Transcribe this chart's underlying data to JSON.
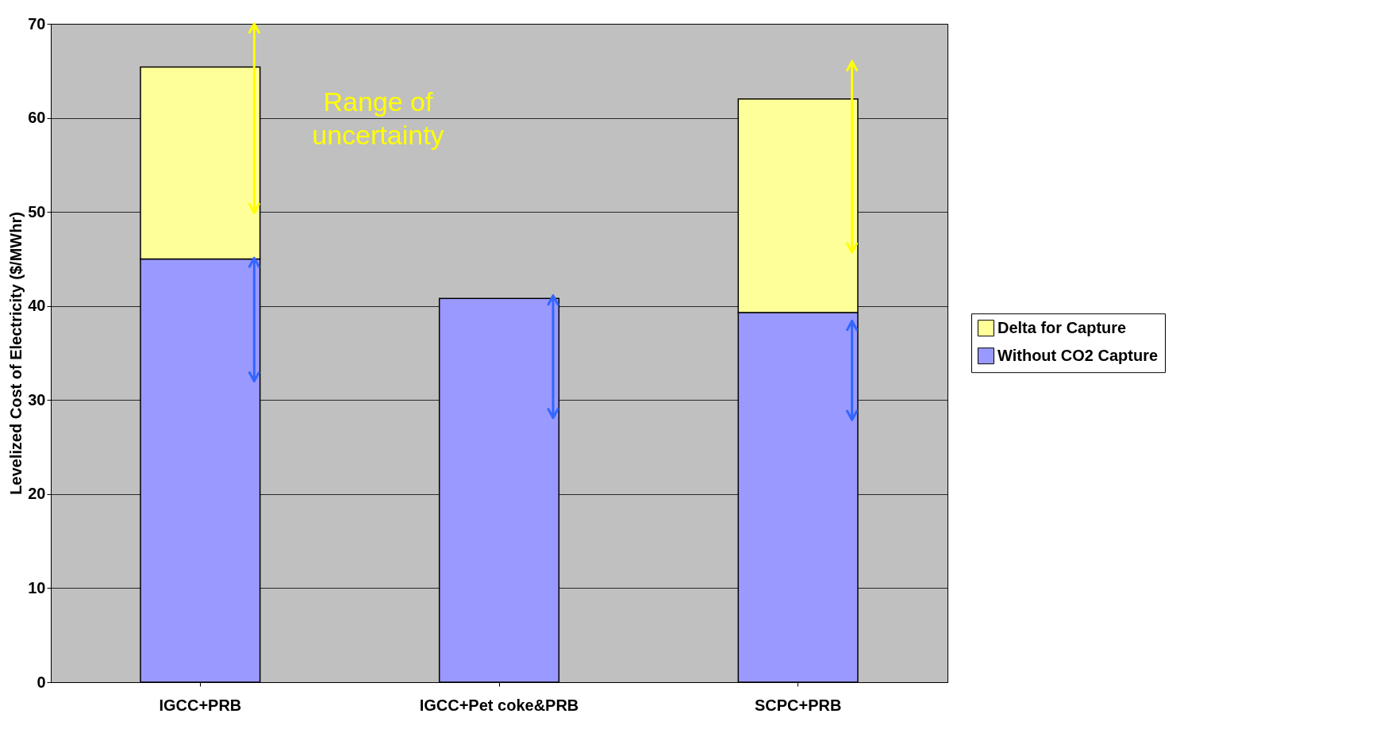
{
  "chart_data": {
    "type": "bar",
    "stacked": true,
    "ylabel": "Levelized Cost of Electricity ($/MWhr)",
    "categories": [
      "IGCC+PRB",
      "IGCC+Pet coke&PRB",
      "SCPC+PRB"
    ],
    "series": [
      {
        "name": "Without CO2 Capture",
        "color": "#9999ff",
        "values": [
          45.0,
          40.8,
          39.3
        ],
        "errors": [
          [
            32.0,
            45.1
          ],
          [
            28.1,
            41.1
          ],
          [
            27.9,
            38.4
          ]
        ]
      },
      {
        "name": "Delta for Capture",
        "color": "#ffff99",
        "values": [
          20.4,
          null,
          22.7
        ],
        "errors": [
          [
            49.9,
            70.0
          ],
          null,
          [
            45.7,
            66.0
          ]
        ]
      }
    ],
    "ylim": [
      0,
      70
    ],
    "yticks": [
      0,
      10,
      20,
      30,
      40,
      50,
      60,
      70
    ],
    "grid": "y",
    "legend": "right",
    "annotations": [
      "Range of\nuncertainty"
    ]
  }
}
